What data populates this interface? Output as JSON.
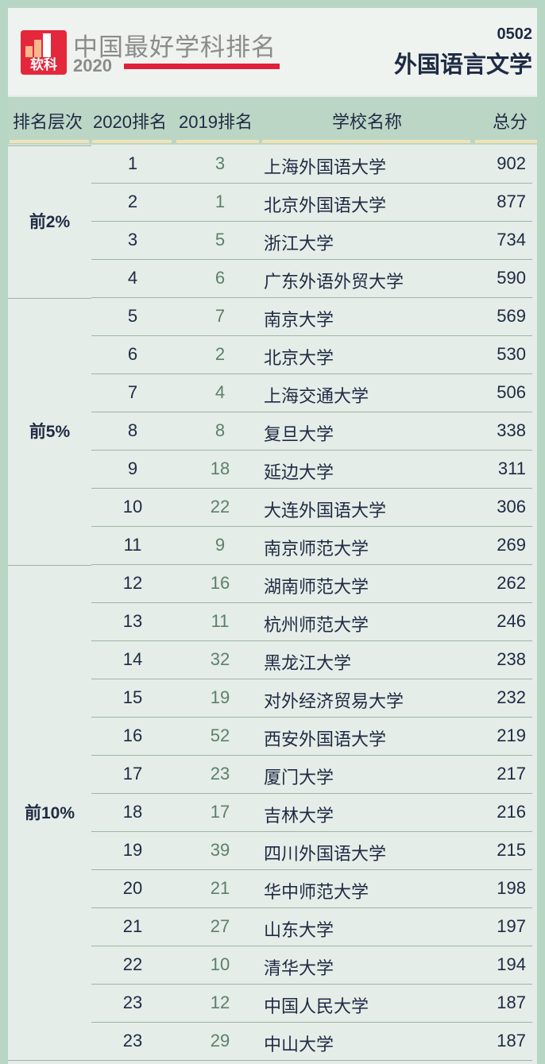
{
  "header": {
    "logo_text": "软科",
    "brand": "中国最好学科排名",
    "year": "2020",
    "code": "0502",
    "subject": "外国语言文学",
    "accent": "#e0203a"
  },
  "columns": [
    "排名层次",
    "2020排名",
    "2019排名",
    "学校名称",
    "总分"
  ],
  "tiers": [
    {
      "label": "前2%",
      "rows": 4
    },
    {
      "label": "前5%",
      "rows": 7
    },
    {
      "label": "前10%",
      "rows": 13
    }
  ],
  "rows": [
    [
      "1",
      "3",
      "上海外国语大学",
      "902"
    ],
    [
      "2",
      "1",
      "北京外国语大学",
      "877"
    ],
    [
      "3",
      "5",
      "浙江大学",
      "734"
    ],
    [
      "4",
      "6",
      "广东外语外贸大学",
      "590"
    ],
    [
      "5",
      "7",
      "南京大学",
      "569"
    ],
    [
      "6",
      "2",
      "北京大学",
      "530"
    ],
    [
      "7",
      "4",
      "上海交通大学",
      "506"
    ],
    [
      "8",
      "8",
      "复旦大学",
      "338"
    ],
    [
      "9",
      "18",
      "延边大学",
      "311"
    ],
    [
      "10",
      "22",
      "大连外国语大学",
      "306"
    ],
    [
      "11",
      "9",
      "南京师范大学",
      "269"
    ],
    [
      "12",
      "16",
      "湖南师范大学",
      "262"
    ],
    [
      "13",
      "11",
      "杭州师范大学",
      "246"
    ],
    [
      "14",
      "32",
      "黑龙江大学",
      "238"
    ],
    [
      "15",
      "19",
      "对外经济贸易大学",
      "232"
    ],
    [
      "16",
      "52",
      "西安外国语大学",
      "219"
    ],
    [
      "17",
      "23",
      "厦门大学",
      "217"
    ],
    [
      "18",
      "17",
      "吉林大学",
      "216"
    ],
    [
      "19",
      "39",
      "四川外国语大学",
      "215"
    ],
    [
      "20",
      "21",
      "华中师范大学",
      "198"
    ],
    [
      "21",
      "27",
      "山东大学",
      "197"
    ],
    [
      "22",
      "10",
      "清华大学",
      "194"
    ],
    [
      "23",
      "12",
      "中国人民大学",
      "187"
    ],
    [
      "23",
      "29",
      "中山大学",
      "187"
    ]
  ]
}
